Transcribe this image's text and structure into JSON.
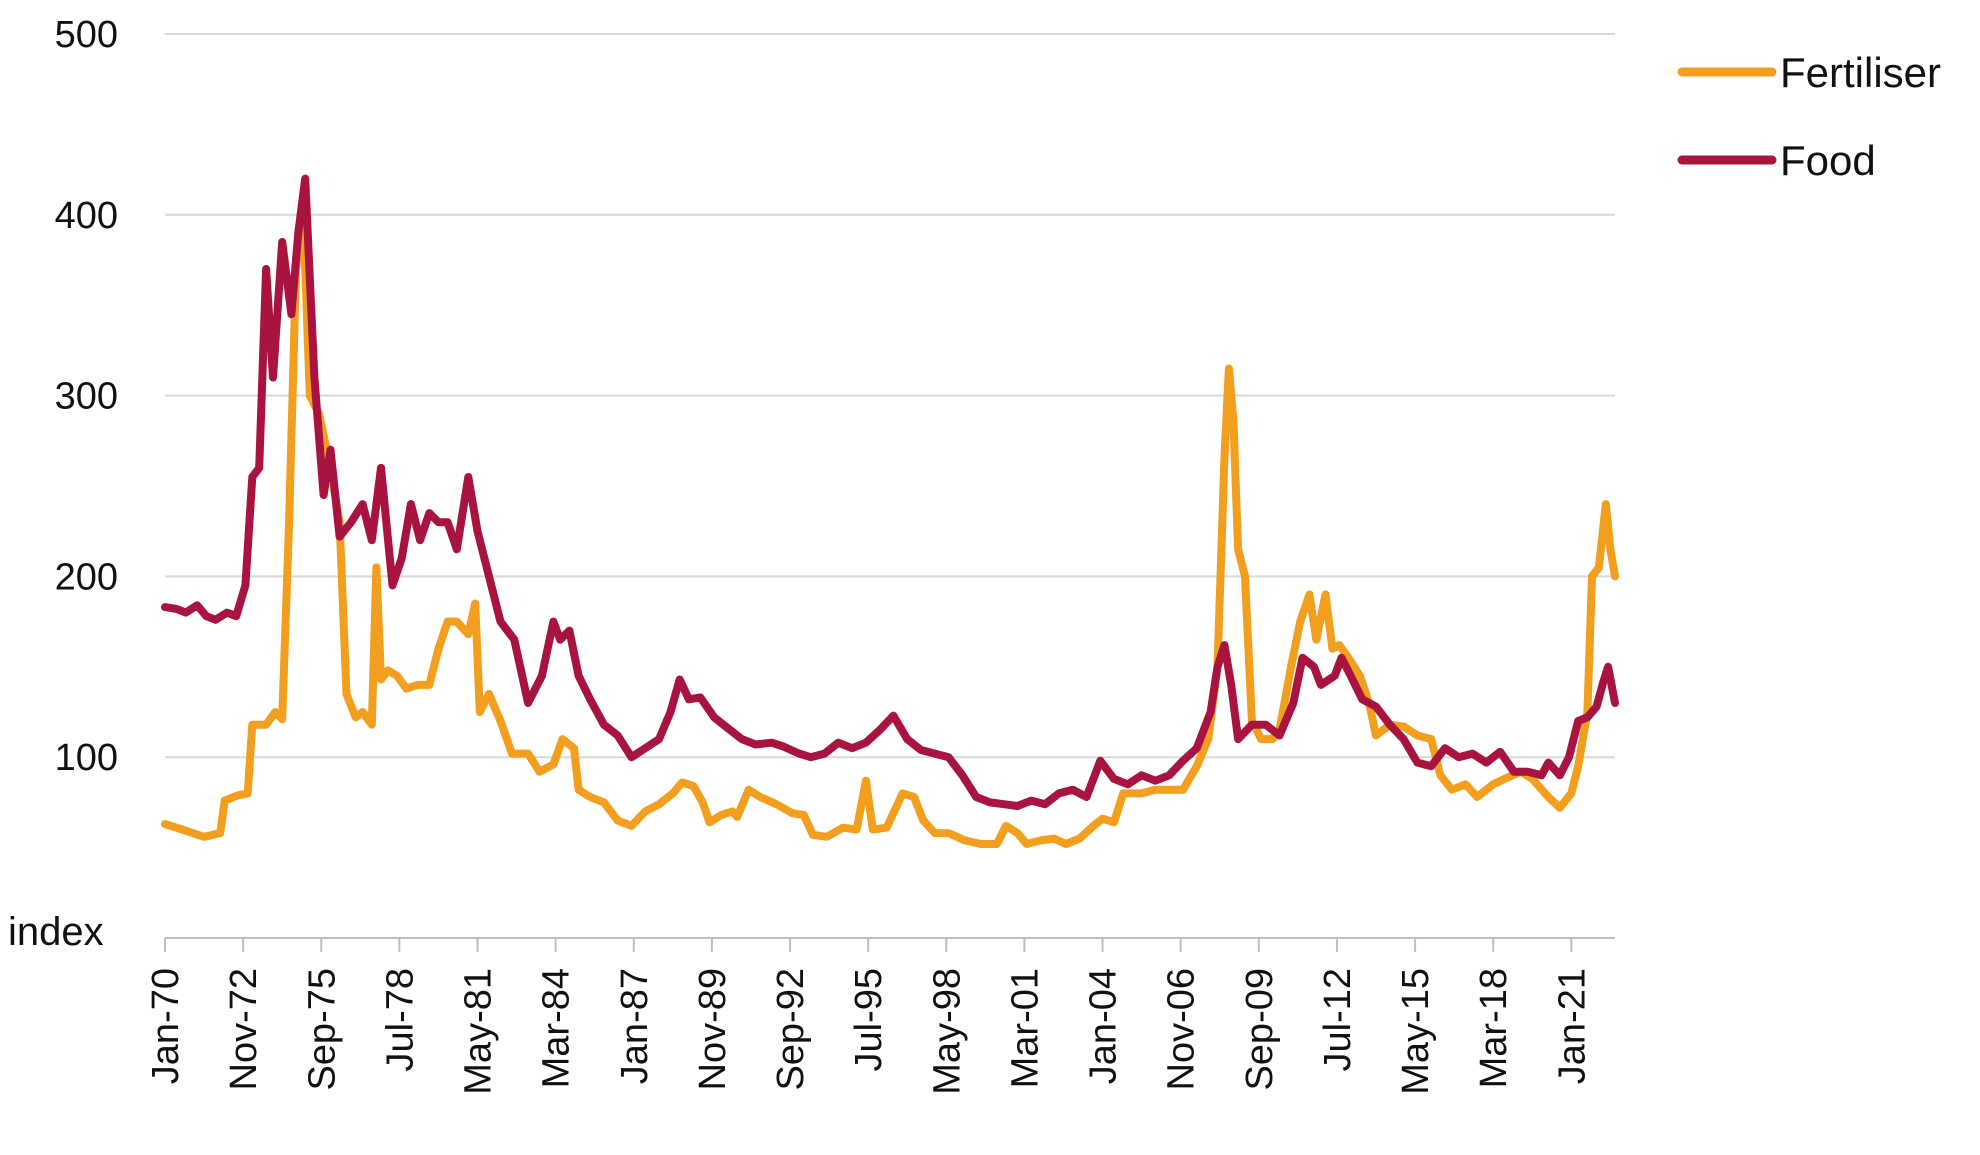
{
  "chart_data": {
    "type": "line",
    "ylabel": "index",
    "ylim": [
      0,
      500
    ],
    "yticks": [
      100,
      200,
      300,
      400,
      500
    ],
    "y_tick_labels": [
      "100",
      "200",
      "300",
      "400",
      "500"
    ],
    "x_tick_labels": [
      "Jan-70",
      "Nov-72",
      "Sep-75",
      "Jul-78",
      "May-81",
      "Mar-84",
      "Jan-87",
      "Nov-89",
      "Sep-92",
      "Jul-95",
      "May-98",
      "Mar-01",
      "Jan-04",
      "Nov-06",
      "Sep-09",
      "Jul-12",
      "May-15",
      "Mar-18",
      "Jan-21"
    ],
    "x_tick_dates": [
      "1970-01",
      "1972-11",
      "1975-09",
      "1978-07",
      "1981-05",
      "1984-03",
      "1987-01",
      "1989-11",
      "1992-09",
      "1995-07",
      "1998-05",
      "2001-03",
      "2004-01",
      "2006-11",
      "2009-09",
      "2012-07",
      "2015-05",
      "2018-03",
      "2021-01"
    ],
    "xlim": [
      "1970-01",
      "2022-08"
    ],
    "grid": true,
    "legend_position": "top-right",
    "series": [
      {
        "name": "Fertiliser",
        "color": "#F29E1F",
        "points": [
          [
            "1970-01",
            63
          ],
          [
            "1970-06",
            61
          ],
          [
            "1971-01",
            58
          ],
          [
            "1971-06",
            56
          ],
          [
            "1972-01",
            58
          ],
          [
            "1972-03",
            76
          ],
          [
            "1972-09",
            79
          ],
          [
            "1973-01",
            80
          ],
          [
            "1973-03",
            118
          ],
          [
            "1973-09",
            118
          ],
          [
            "1974-01",
            125
          ],
          [
            "1974-04",
            121
          ],
          [
            "1974-07",
            230
          ],
          [
            "1974-10",
            370
          ],
          [
            "1975-01",
            405
          ],
          [
            "1975-04",
            300
          ],
          [
            "1975-08",
            290
          ],
          [
            "1976-01",
            260
          ],
          [
            "1976-05",
            230
          ],
          [
            "1976-08",
            135
          ],
          [
            "1976-12",
            122
          ],
          [
            "1977-03",
            125
          ],
          [
            "1977-07",
            118
          ],
          [
            "1977-09",
            205
          ],
          [
            "1977-11",
            143
          ],
          [
            "1978-02",
            148
          ],
          [
            "1978-06",
            145
          ],
          [
            "1978-10",
            138
          ],
          [
            "1979-03",
            140
          ],
          [
            "1979-08",
            140
          ],
          [
            "1979-12",
            160
          ],
          [
            "1980-04",
            175
          ],
          [
            "1980-08",
            175
          ],
          [
            "1981-01",
            168
          ],
          [
            "1981-04",
            185
          ],
          [
            "1981-06",
            125
          ],
          [
            "1981-10",
            135
          ],
          [
            "1982-03",
            120
          ],
          [
            "1982-08",
            102
          ],
          [
            "1983-03",
            102
          ],
          [
            "1983-08",
            92
          ],
          [
            "1984-02",
            96
          ],
          [
            "1984-06",
            110
          ],
          [
            "1984-11",
            105
          ],
          [
            "1985-01",
            82
          ],
          [
            "1985-06",
            78
          ],
          [
            "1985-12",
            75
          ],
          [
            "1986-06",
            65
          ],
          [
            "1986-12",
            62
          ],
          [
            "1987-06",
            70
          ],
          [
            "1987-12",
            74
          ],
          [
            "1988-06",
            80
          ],
          [
            "1988-10",
            86
          ],
          [
            "1989-03",
            84
          ],
          [
            "1989-07",
            75
          ],
          [
            "1989-10",
            64
          ],
          [
            "1990-03",
            68
          ],
          [
            "1990-08",
            70
          ],
          [
            "1990-10",
            67
          ],
          [
            "1991-03",
            82
          ],
          [
            "1991-08",
            78
          ],
          [
            "1992-03",
            74
          ],
          [
            "1992-10",
            69
          ],
          [
            "1993-03",
            68
          ],
          [
            "1993-07",
            57
          ],
          [
            "1994-01",
            56
          ],
          [
            "1994-08",
            61
          ],
          [
            "1995-02",
            60
          ],
          [
            "1995-06",
            87
          ],
          [
            "1995-09",
            60
          ],
          [
            "1996-03",
            61
          ],
          [
            "1996-10",
            80
          ],
          [
            "1997-03",
            78
          ],
          [
            "1997-07",
            65
          ],
          [
            "1997-12",
            58
          ],
          [
            "1998-06",
            58
          ],
          [
            "1999-01",
            54
          ],
          [
            "1999-08",
            52
          ],
          [
            "2000-03",
            52
          ],
          [
            "2000-07",
            62
          ],
          [
            "2000-12",
            58
          ],
          [
            "2001-04",
            52
          ],
          [
            "2001-10",
            54
          ],
          [
            "2002-04",
            55
          ],
          [
            "2002-09",
            52
          ],
          [
            "2003-03",
            55
          ],
          [
            "2003-09",
            62
          ],
          [
            "2004-01",
            66
          ],
          [
            "2004-06",
            64
          ],
          [
            "2004-10",
            80
          ],
          [
            "2005-06",
            80
          ],
          [
            "2005-12",
            82
          ],
          [
            "2006-06",
            82
          ],
          [
            "2006-12",
            82
          ],
          [
            "2007-06",
            95
          ],
          [
            "2007-11",
            110
          ],
          [
            "2008-03",
            150
          ],
          [
            "2008-06",
            265
          ],
          [
            "2008-08",
            315
          ],
          [
            "2008-10",
            285
          ],
          [
            "2008-12",
            215
          ],
          [
            "2009-03",
            200
          ],
          [
            "2009-06",
            120
          ],
          [
            "2009-10",
            110
          ],
          [
            "2010-03",
            110
          ],
          [
            "2010-06",
            115
          ],
          [
            "2010-11",
            150
          ],
          [
            "2011-03",
            175
          ],
          [
            "2011-07",
            190
          ],
          [
            "2011-10",
            165
          ],
          [
            "2012-02",
            190
          ],
          [
            "2012-05",
            160
          ],
          [
            "2012-08",
            162
          ],
          [
            "2012-12",
            155
          ],
          [
            "2013-05",
            145
          ],
          [
            "2013-09",
            130
          ],
          [
            "2013-12",
            112
          ],
          [
            "2014-06",
            118
          ],
          [
            "2014-12",
            117
          ],
          [
            "2015-06",
            112
          ],
          [
            "2015-12",
            110
          ],
          [
            "2016-04",
            90
          ],
          [
            "2016-09",
            82
          ],
          [
            "2017-03",
            85
          ],
          [
            "2017-08",
            78
          ],
          [
            "2018-03",
            85
          ],
          [
            "2018-08",
            88
          ],
          [
            "2019-03",
            92
          ],
          [
            "2019-08",
            88
          ],
          [
            "2020-03",
            78
          ],
          [
            "2020-08",
            72
          ],
          [
            "2021-01",
            80
          ],
          [
            "2021-04",
            95
          ],
          [
            "2021-08",
            125
          ],
          [
            "2021-10",
            200
          ],
          [
            "2022-01",
            205
          ],
          [
            "2022-04",
            240
          ],
          [
            "2022-06",
            215
          ],
          [
            "2022-08",
            200
          ]
        ]
      },
      {
        "name": "Food",
        "color": "#A8133F",
        "points": [
          [
            "1970-01",
            183
          ],
          [
            "1970-06",
            182
          ],
          [
            "1970-10",
            180
          ],
          [
            "1971-03",
            184
          ],
          [
            "1971-07",
            178
          ],
          [
            "1971-11",
            176
          ],
          [
            "1972-04",
            180
          ],
          [
            "1972-08",
            178
          ],
          [
            "1972-12",
            195
          ],
          [
            "1973-03",
            255
          ],
          [
            "1973-06",
            260
          ],
          [
            "1973-09",
            370
          ],
          [
            "1973-12",
            310
          ],
          [
            "1974-04",
            385
          ],
          [
            "1974-08",
            345
          ],
          [
            "1974-11",
            390
          ],
          [
            "1975-02",
            420
          ],
          [
            "1975-06",
            310
          ],
          [
            "1975-10",
            245
          ],
          [
            "1976-01",
            270
          ],
          [
            "1976-05",
            222
          ],
          [
            "1976-10",
            230
          ],
          [
            "1977-03",
            240
          ],
          [
            "1977-07",
            220
          ],
          [
            "1977-11",
            260
          ],
          [
            "1978-04",
            195
          ],
          [
            "1978-08",
            210
          ],
          [
            "1978-12",
            240
          ],
          [
            "1979-04",
            220
          ],
          [
            "1979-08",
            235
          ],
          [
            "1979-12",
            230
          ],
          [
            "1980-04",
            230
          ],
          [
            "1980-08",
            215
          ],
          [
            "1981-01",
            255
          ],
          [
            "1981-05",
            225
          ],
          [
            "1981-10",
            200
          ],
          [
            "1982-03",
            175
          ],
          [
            "1982-09",
            165
          ],
          [
            "1983-03",
            130
          ],
          [
            "1983-09",
            145
          ],
          [
            "1984-02",
            175
          ],
          [
            "1984-05",
            165
          ],
          [
            "1984-09",
            170
          ],
          [
            "1985-01",
            145
          ],
          [
            "1985-06",
            132
          ],
          [
            "1985-12",
            118
          ],
          [
            "1986-06",
            112
          ],
          [
            "1986-12",
            100
          ],
          [
            "1987-06",
            105
          ],
          [
            "1987-12",
            110
          ],
          [
            "1988-05",
            125
          ],
          [
            "1988-09",
            143
          ],
          [
            "1989-01",
            132
          ],
          [
            "1989-06",
            133
          ],
          [
            "1989-12",
            122
          ],
          [
            "1990-06",
            116
          ],
          [
            "1990-12",
            110
          ],
          [
            "1991-06",
            107
          ],
          [
            "1992-01",
            108
          ],
          [
            "1992-06",
            106
          ],
          [
            "1993-01",
            102
          ],
          [
            "1993-06",
            100
          ],
          [
            "1993-12",
            102
          ],
          [
            "1994-06",
            108
          ],
          [
            "1994-12",
            105
          ],
          [
            "1995-06",
            108
          ],
          [
            "1995-12",
            115
          ],
          [
            "1996-06",
            123
          ],
          [
            "1996-12",
            110
          ],
          [
            "1997-06",
            104
          ],
          [
            "1997-12",
            102
          ],
          [
            "1998-06",
            100
          ],
          [
            "1998-12",
            90
          ],
          [
            "1999-06",
            78
          ],
          [
            "1999-12",
            75
          ],
          [
            "2000-06",
            74
          ],
          [
            "2000-12",
            73
          ],
          [
            "2001-06",
            76
          ],
          [
            "2001-12",
            74
          ],
          [
            "2002-06",
            80
          ],
          [
            "2002-12",
            82
          ],
          [
            "2003-06",
            78
          ],
          [
            "2003-12",
            98
          ],
          [
            "2004-06",
            88
          ],
          [
            "2004-12",
            85
          ],
          [
            "2005-06",
            90
          ],
          [
            "2005-12",
            87
          ],
          [
            "2006-06",
            90
          ],
          [
            "2006-12",
            98
          ],
          [
            "2007-06",
            105
          ],
          [
            "2007-12",
            125
          ],
          [
            "2008-03",
            150
          ],
          [
            "2008-06",
            162
          ],
          [
            "2008-09",
            140
          ],
          [
            "2008-12",
            110
          ],
          [
            "2009-06",
            118
          ],
          [
            "2009-12",
            118
          ],
          [
            "2010-06",
            112
          ],
          [
            "2010-12",
            130
          ],
          [
            "2011-04",
            155
          ],
          [
            "2011-09",
            150
          ],
          [
            "2011-12",
            140
          ],
          [
            "2012-06",
            145
          ],
          [
            "2012-09",
            155
          ],
          [
            "2013-01",
            145
          ],
          [
            "2013-06",
            132
          ],
          [
            "2013-12",
            128
          ],
          [
            "2014-06",
            118
          ],
          [
            "2014-12",
            110
          ],
          [
            "2015-06",
            97
          ],
          [
            "2015-12",
            95
          ],
          [
            "2016-06",
            105
          ],
          [
            "2016-12",
            100
          ],
          [
            "2017-06",
            102
          ],
          [
            "2017-12",
            97
          ],
          [
            "2018-06",
            103
          ],
          [
            "2018-12",
            92
          ],
          [
            "2019-06",
            92
          ],
          [
            "2019-12",
            90
          ],
          [
            "2020-03",
            97
          ],
          [
            "2020-08",
            90
          ],
          [
            "2020-12",
            100
          ],
          [
            "2021-04",
            120
          ],
          [
            "2021-08",
            122
          ],
          [
            "2021-12",
            128
          ],
          [
            "2022-03",
            142
          ],
          [
            "2022-05",
            150
          ],
          [
            "2022-08",
            130
          ]
        ]
      }
    ]
  }
}
